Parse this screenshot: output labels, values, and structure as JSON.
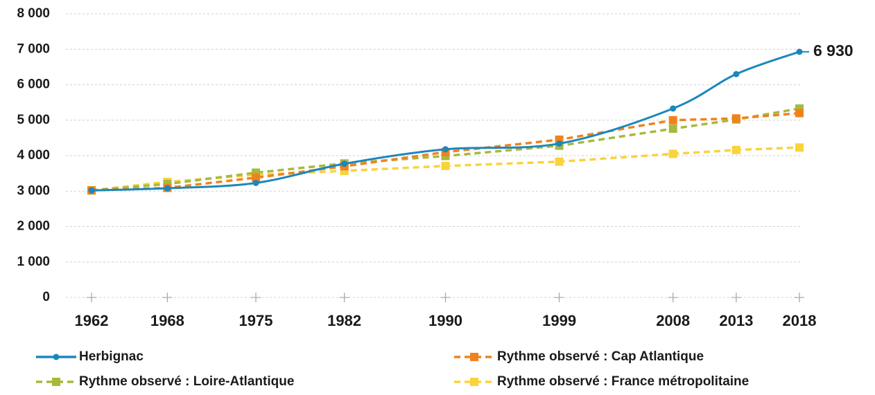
{
  "chart_data": {
    "type": "line",
    "x": [
      1962,
      1968,
      1975,
      1982,
      1990,
      1999,
      2008,
      2013,
      2018
    ],
    "xlim": [
      1962,
      2018
    ],
    "xticks": [
      1962,
      1968,
      1975,
      1982,
      1990,
      1999,
      2008,
      2013,
      2018
    ],
    "ylim": [
      0,
      8000
    ],
    "yticks": [
      0,
      {
        "value": 1000,
        "label": "1 000"
      },
      {
        "value": 2000,
        "label": "2 000"
      },
      {
        "value": 3000,
        "label": "3 000"
      },
      {
        "value": 4000,
        "label": "4 000"
      },
      {
        "value": 5000,
        "label": "5 000"
      },
      {
        "value": 6000,
        "label": "6 000"
      },
      {
        "value": 7000,
        "label": "7 000"
      },
      {
        "value": 8000,
        "label": "8 000"
      }
    ],
    "grid": true,
    "legend": "bottom",
    "series": [
      {
        "name": "Herbignac",
        "color": "#1a87bd",
        "style": "solid",
        "marker": "circle",
        "smooth": true,
        "values": [
          3020,
          3080,
          3230,
          3770,
          4180,
          4340,
          5330,
          6300,
          6930
        ],
        "value_labels": [
          null,
          null,
          null,
          null,
          null,
          null,
          null,
          null,
          "6 930"
        ]
      },
      {
        "name": "Rythme observé : Cap Atlantique",
        "color": "#f0821e",
        "style": "dashed",
        "marker": "square",
        "values": [
          3020,
          3090,
          3380,
          3700,
          4100,
          4450,
          5000,
          5050,
          5200
        ]
      },
      {
        "name": "Rythme observé : Loire-Atlantique",
        "color": "#a8b93c",
        "style": "dashed",
        "marker": "square",
        "values": [
          3020,
          3200,
          3520,
          3780,
          3990,
          4280,
          4760,
          5020,
          5330
        ]
      },
      {
        "name": "Rythme observé : France métropolitaine",
        "color": "#f9d33a",
        "style": "dashed",
        "marker": "square",
        "values": [
          3020,
          3260,
          3460,
          3570,
          3710,
          3830,
          4050,
          4160,
          4230
        ]
      }
    ]
  }
}
